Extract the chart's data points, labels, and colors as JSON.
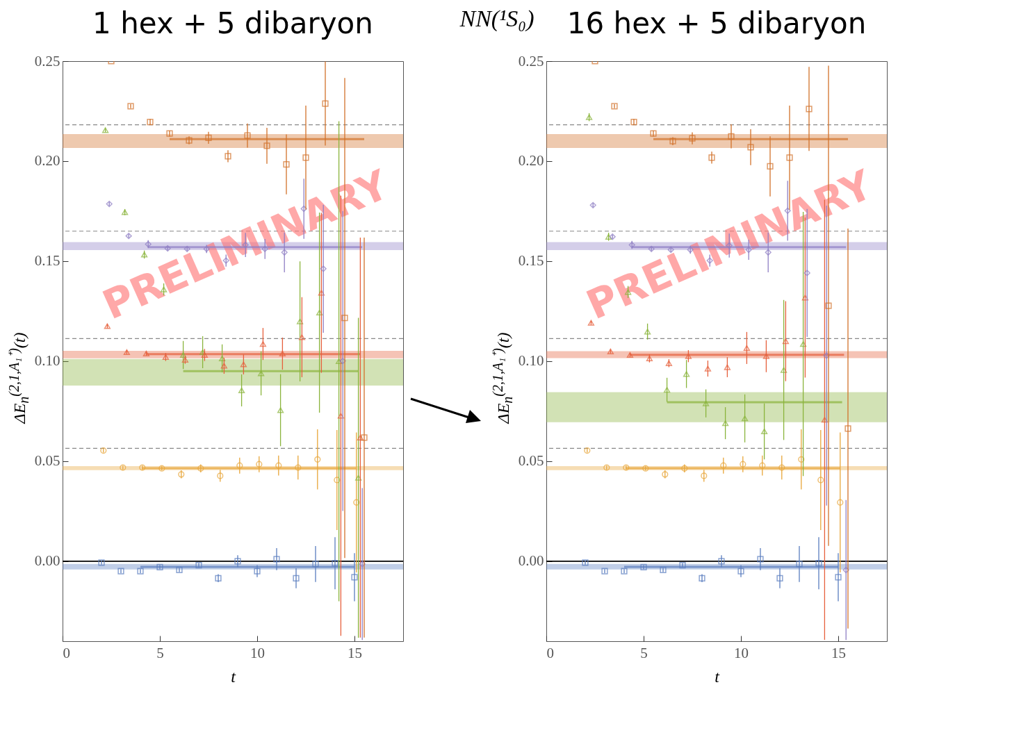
{
  "chart_data": [
    {
      "type": "scatter",
      "title": "1 hex + 5 dibaryon",
      "xlabel": "t",
      "ylabel": "ΔE$_{n}$$^{(2,1,A₁⁺)}$(t)",
      "annotations": [
        "NN(¹S₀)",
        "PRELIMINARY"
      ],
      "xlim": [
        0,
        17.5
      ],
      "ylim": [
        -0.04,
        0.25
      ],
      "xticks": [
        0,
        5,
        10,
        15
      ],
      "yticks": [
        {
          "value": 0,
          "label": "0.00"
        },
        {
          "value": 0.05,
          "label": "0.05"
        },
        {
          "value": 0.1,
          "label": "0.10"
        },
        {
          "value": 0.15,
          "label": "0.15"
        },
        {
          "value": 0.2,
          "label": "0.20"
        },
        {
          "value": 0.25,
          "label": "0.25"
        }
      ],
      "bands": [
        {
          "axis": "y",
          "from": -0.0041,
          "to": -0.0014,
          "color": "#5a7dbf"
        },
        {
          "axis": "y",
          "from": 0.0455,
          "to": 0.0475,
          "color": "#e8a63a"
        },
        {
          "axis": "y",
          "from": 0.0878,
          "to": 0.1011,
          "color": "#8ab43c"
        },
        {
          "axis": "y",
          "from": 0.1014,
          "to": 0.1052,
          "color": "#e6603c"
        },
        {
          "axis": "y",
          "from": 0.1555,
          "to": 0.1595,
          "color": "#8f7fc4"
        },
        {
          "axis": "y",
          "from": 0.2066,
          "to": 0.2135,
          "color": "#d2722a"
        }
      ],
      "ref_lines": [
        {
          "axis": "y",
          "value": 0,
          "color": "#000000",
          "line_style": "solid"
        },
        {
          "axis": "y",
          "value": 0.0564,
          "color": "#888888",
          "line_style": "dashed"
        },
        {
          "axis": "y",
          "value": 0.1113,
          "color": "#888888",
          "line_style": "dashed"
        },
        {
          "axis": "y",
          "value": 0.165,
          "color": "#888888",
          "line_style": "dashed"
        },
        {
          "axis": "y",
          "value": 0.2182,
          "color": "#888888",
          "line_style": "dashed"
        }
      ],
      "series": [
        {
          "type": "scatter",
          "marker": "square",
          "color": "#5a7dbf",
          "x": [
            2,
            3,
            4,
            5,
            6,
            7,
            8,
            9,
            10,
            11,
            12,
            13,
            14,
            15
          ],
          "values": [
            -0.0007,
            -0.005,
            -0.005,
            -0.003,
            -0.0044,
            -0.002,
            -0.0085,
            0,
            -0.005,
            0.001,
            -0.0085,
            -0.0014,
            -0.001,
            -0.008
          ],
          "errors": [
            0.001,
            0.001,
            0.001,
            0.001,
            0.001,
            0.001,
            0.002,
            0.003,
            0.003,
            0.0055,
            0.005,
            0.009,
            0.013,
            0.012
          ]
        },
        {
          "type": "scatter",
          "marker": "circle",
          "color": "#e8a63a",
          "x": [
            2.1,
            3.1,
            4.1,
            5.1,
            6.1,
            7.1,
            8.1,
            9.1,
            10.1,
            11.1,
            12.1,
            13.1,
            14.1,
            15.1
          ],
          "values": [
            0.0553,
            0.0468,
            0.0468,
            0.0464,
            0.0434,
            0.0464,
            0.0427,
            0.0478,
            0.0485,
            0.0478,
            0.0468,
            0.0509,
            0.0406,
            0.0294
          ],
          "errors": [
            0.001,
            0.001,
            0.001,
            0.001,
            0.002,
            0.002,
            0.003,
            0.004,
            0.004,
            0.005,
            0.006,
            0.015,
            0.025,
            0.035
          ]
        },
        {
          "type": "scatter",
          "marker": "triangle",
          "color": "#8ab43c",
          "x": [
            2.2,
            3.2,
            4.2,
            5.2,
            6.2,
            7.2,
            8.2,
            9.2,
            10.2,
            11.2,
            12.2,
            13.2,
            14.2,
            15.2
          ],
          "values": [
            0.2155,
            0.1745,
            0.1533,
            0.1359,
            0.1031,
            0.1045,
            0.1014,
            0.0854,
            0.0939,
            0.0755,
            0.1199,
            0.1243,
            0.1,
            0.0417
          ],
          "errors": [
            0.001,
            0.0015,
            0.002,
            0.003,
            0.007,
            0.008,
            0.007,
            0.008,
            0.011,
            0.018,
            0.03,
            0.05,
            0.12,
            0.08
          ]
        },
        {
          "type": "scatter",
          "marker": "triangle",
          "color": "#e6603c",
          "x": [
            2.3,
            3.3,
            4.3,
            5.3,
            6.3,
            7.3,
            8.3,
            9.3,
            10.3,
            11.3,
            12.3,
            13.3,
            14.3,
            15.3
          ],
          "values": [
            0.1175,
            0.1045,
            0.1038,
            0.1021,
            0.1007,
            0.1031,
            0.0977,
            0.0984,
            0.1086,
            0.1038,
            0.112,
            0.1342,
            0.0727,
            0.0618
          ],
          "errors": [
            0.001,
            0.001,
            0.001,
            0.002,
            0.002,
            0.003,
            0.004,
            0.005,
            0.008,
            0.008,
            0.02,
            0.04,
            0.11,
            0.1
          ]
        },
        {
          "type": "scatter",
          "marker": "diamond",
          "color": "#8f7fc4",
          "x": [
            2.4,
            3.4,
            4.4,
            5.4,
            6.4,
            7.4,
            8.4,
            9.4,
            10.4,
            11.4,
            12.4,
            13.4,
            14.4,
            15.4
          ],
          "values": [
            0.1786,
            0.1626,
            0.1585,
            0.1564,
            0.1561,
            0.1561,
            0.1503,
            0.1581,
            0.1561,
            0.1544,
            0.1762,
            0.1462,
            0.1001,
            -0.0014
          ],
          "errors": [
            0.001,
            0.001,
            0.002,
            0.001,
            0.001,
            0.002,
            0.003,
            0.006,
            0.005,
            0.01,
            0.015,
            0.032,
            0.075,
            0.038
          ]
        },
        {
          "type": "scatter",
          "marker": "square",
          "color": "#d2722a",
          "x": [
            2.5,
            3.5,
            4.5,
            5.5,
            6.5,
            7.5,
            8.5,
            9.5,
            10.5,
            11.5,
            12.5,
            13.5,
            14.5,
            15.5
          ],
          "values": [
            0.25,
            0.2275,
            0.2196,
            0.2138,
            0.2104,
            0.2117,
            0.2025,
            0.2128,
            0.2077,
            0.1984,
            0.2018,
            0.2288,
            0.1216,
            0.0618
          ],
          "errors": [
            0,
            0.001,
            0.0015,
            0.0015,
            0.002,
            0.003,
            0.003,
            0.006,
            0.009,
            0.015,
            0.026,
            0.021,
            0.12,
            0.1
          ]
        },
        {
          "type": "line",
          "color": "#5a7dbf",
          "x": [
            4,
            15
          ],
          "values": [
            -0.0028,
            -0.0028
          ]
        },
        {
          "type": "line",
          "color": "#e8a63a",
          "x": [
            4.1,
            15.1
          ],
          "values": [
            0.0465,
            0.0465
          ]
        },
        {
          "type": "line",
          "color": "#8ab43c",
          "x": [
            6.2,
            15.2
          ],
          "values": [
            0.095,
            0.095
          ]
        },
        {
          "type": "line",
          "color": "#e6603c",
          "x": [
            4.3,
            15.3
          ],
          "values": [
            0.1035,
            0.1035
          ]
        },
        {
          "type": "line",
          "color": "#8f7fc4",
          "x": [
            4.4,
            15.4
          ],
          "values": [
            0.157,
            0.157
          ]
        },
        {
          "type": "line",
          "color": "#d2722a",
          "x": [
            5.5,
            15.5
          ],
          "values": [
            0.211,
            0.211
          ]
        }
      ]
    },
    {
      "type": "scatter",
      "title": "16 hex + 5 dibaryon",
      "xlabel": "t",
      "ylabel": "ΔE$_{n}$$^{(2,1,A₁⁺)}$(t)",
      "annotations": [
        "PRELIMINARY"
      ],
      "xlim": [
        0,
        17.5
      ],
      "ylim": [
        -0.04,
        0.25
      ],
      "xticks": [
        0,
        5,
        10,
        15
      ],
      "yticks": [
        {
          "value": 0,
          "label": "0.00"
        },
        {
          "value": 0.05,
          "label": "0.05"
        },
        {
          "value": 0.1,
          "label": "0.10"
        },
        {
          "value": 0.15,
          "label": "0.15"
        },
        {
          "value": 0.2,
          "label": "0.20"
        },
        {
          "value": 0.25,
          "label": "0.25"
        }
      ],
      "bands": [
        {
          "axis": "y",
          "from": -0.0041,
          "to": -0.0014,
          "color": "#5a7dbf"
        },
        {
          "axis": "y",
          "from": 0.0455,
          "to": 0.0475,
          "color": "#e8a63a"
        },
        {
          "axis": "y",
          "from": 0.0695,
          "to": 0.0845,
          "color": "#8ab43c"
        },
        {
          "axis": "y",
          "from": 0.1015,
          "to": 0.105,
          "color": "#e6603c"
        },
        {
          "axis": "y",
          "from": 0.1555,
          "to": 0.1595,
          "color": "#8f7fc4"
        },
        {
          "axis": "y",
          "from": 0.2066,
          "to": 0.2135,
          "color": "#d2722a"
        }
      ],
      "ref_lines": [
        {
          "axis": "y",
          "value": 0,
          "color": "#000000",
          "line_style": "solid"
        },
        {
          "axis": "y",
          "value": 0.0564,
          "color": "#888888",
          "line_style": "dashed"
        },
        {
          "axis": "y",
          "value": 0.1113,
          "color": "#888888",
          "line_style": "dashed"
        },
        {
          "axis": "y",
          "value": 0.165,
          "color": "#888888",
          "line_style": "dashed"
        },
        {
          "axis": "y",
          "value": 0.2182,
          "color": "#888888",
          "line_style": "dashed"
        }
      ],
      "series": [
        {
          "type": "scatter",
          "marker": "square",
          "color": "#5a7dbf",
          "x": [
            2,
            3,
            4,
            5,
            6,
            7,
            8,
            9,
            10,
            11,
            12,
            13,
            14,
            15
          ],
          "values": [
            -0.0007,
            -0.005,
            -0.005,
            -0.003,
            -0.0044,
            -0.002,
            -0.0085,
            0,
            -0.005,
            0.001,
            -0.0085,
            -0.0014,
            -0.001,
            -0.008
          ],
          "errors": [
            0.001,
            0.001,
            0.001,
            0.001,
            0.001,
            0.001,
            0.002,
            0.003,
            0.003,
            0.0055,
            0.005,
            0.009,
            0.013,
            0.012
          ]
        },
        {
          "type": "scatter",
          "marker": "circle",
          "color": "#e8a63a",
          "x": [
            2.1,
            3.1,
            4.1,
            5.1,
            6.1,
            7.1,
            8.1,
            9.1,
            10.1,
            11.1,
            12.1,
            13.1,
            14.1,
            15.1
          ],
          "values": [
            0.0553,
            0.0468,
            0.0468,
            0.0464,
            0.0434,
            0.0464,
            0.0427,
            0.0478,
            0.0485,
            0.0478,
            0.0468,
            0.0509,
            0.0406,
            0.0294
          ],
          "errors": [
            0.001,
            0.001,
            0.001,
            0.001,
            0.002,
            0.002,
            0.003,
            0.004,
            0.004,
            0.005,
            0.006,
            0.015,
            0.025,
            0.035
          ]
        },
        {
          "type": "scatter",
          "marker": "triangle",
          "color": "#8ab43c",
          "x": [
            2.2,
            3.2,
            4.2,
            5.2,
            6.2,
            7.2,
            8.2,
            9.2,
            10.2,
            11.2,
            12.2,
            13.2
          ],
          "values": [
            0.222,
            0.1622,
            0.1346,
            0.1148,
            0.0857,
            0.0936,
            0.0789,
            0.069,
            0.0714,
            0.0649,
            0.0956,
            0.1086
          ],
          "errors": [
            0.002,
            0.002,
            0.003,
            0.004,
            0.006,
            0.007,
            0.007,
            0.008,
            0.012,
            0.014,
            0.035,
            0.066
          ]
        },
        {
          "type": "scatter",
          "marker": "triangle",
          "color": "#e6603c",
          "x": [
            2.3,
            3.3,
            4.3,
            5.3,
            6.3,
            7.3,
            8.3,
            9.3,
            10.3,
            11.3,
            12.3,
            13.3,
            14.3
          ],
          "values": [
            0.1192,
            0.1049,
            0.1031,
            0.1014,
            0.099,
            0.1025,
            0.0963,
            0.097,
            0.1066,
            0.1025,
            0.11,
            0.1318,
            0.0707
          ],
          "errors": [
            0.001,
            0.001,
            0.001,
            0.002,
            0.002,
            0.003,
            0.004,
            0.005,
            0.008,
            0.008,
            0.02,
            0.04,
            0.11
          ]
        },
        {
          "type": "scatter",
          "marker": "diamond",
          "color": "#8f7fc4",
          "x": [
            2.4,
            3.4,
            4.4,
            5.4,
            6.4,
            7.4,
            8.4,
            9.4,
            10.4,
            11.4,
            12.4,
            13.4,
            14.4,
            15.4
          ],
          "values": [
            0.178,
            0.1622,
            0.1581,
            0.1561,
            0.1557,
            0.1557,
            0.1503,
            0.1578,
            0.1557,
            0.1544,
            0.1752,
            0.1441,
            0.1028,
            -0.0044
          ],
          "errors": [
            0.001,
            0.001,
            0.002,
            0.001,
            0.001,
            0.002,
            0.003,
            0.006,
            0.005,
            0.01,
            0.015,
            0.032,
            0.075,
            0.035
          ]
        },
        {
          "type": "scatter",
          "marker": "square",
          "color": "#d2722a",
          "x": [
            2.5,
            3.5,
            4.5,
            5.5,
            6.5,
            7.5,
            8.5,
            9.5,
            10.5,
            11.5,
            12.5,
            13.5,
            14.5,
            15.5
          ],
          "values": [
            0.25,
            0.2275,
            0.2196,
            0.2138,
            0.21,
            0.2114,
            0.2018,
            0.2124,
            0.207,
            0.1974,
            0.2018,
            0.2261,
            0.1277,
            0.0663
          ],
          "errors": [
            0,
            0.001,
            0.0015,
            0.0015,
            0.002,
            0.003,
            0.003,
            0.006,
            0.009,
            0.015,
            0.026,
            0.021,
            0.12,
            0.1
          ]
        },
        {
          "type": "line",
          "color": "#5a7dbf",
          "x": [
            4,
            15
          ],
          "values": [
            -0.0028,
            -0.0028
          ]
        },
        {
          "type": "line",
          "color": "#e8a63a",
          "x": [
            4.1,
            15.1
          ],
          "values": [
            0.0465,
            0.0465
          ]
        },
        {
          "type": "line",
          "color": "#8ab43c",
          "x": [
            6.2,
            15.2
          ],
          "values": [
            0.0795,
            0.0795
          ]
        },
        {
          "type": "line",
          "color": "#e6603c",
          "x": [
            4.3,
            15.3
          ],
          "values": [
            0.1032,
            0.1032
          ]
        },
        {
          "type": "line",
          "color": "#8f7fc4",
          "x": [
            4.4,
            15.4
          ],
          "values": [
            0.157,
            0.157
          ]
        },
        {
          "type": "line",
          "color": "#d2722a",
          "x": [
            5.5,
            15.5
          ],
          "values": [
            0.211,
            0.211
          ]
        }
      ]
    }
  ]
}
